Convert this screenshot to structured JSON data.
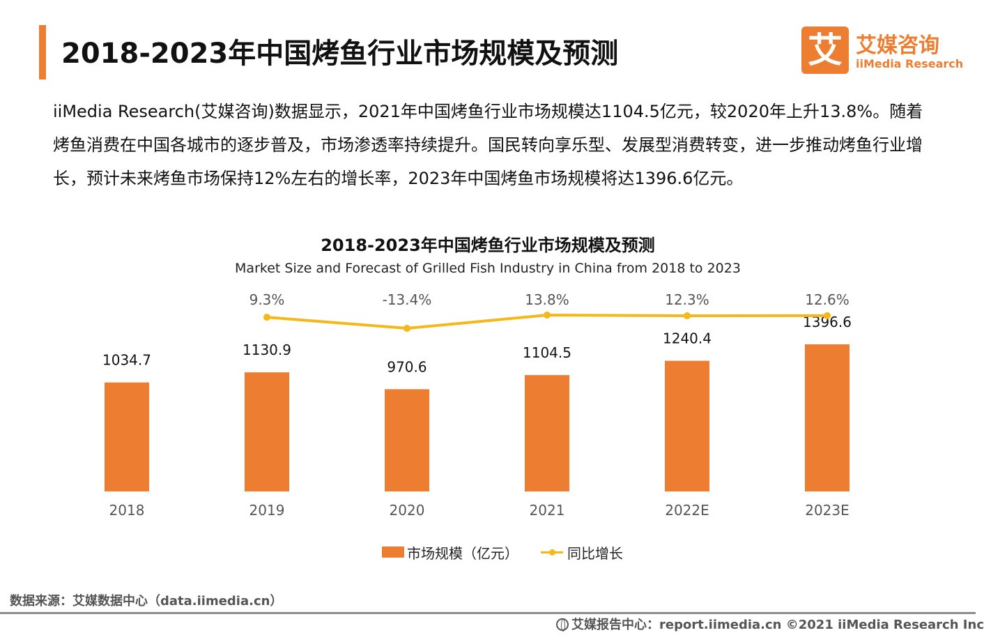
{
  "header": {
    "title": "2018-2023年中国烤鱼行业市场规模及预测"
  },
  "logo": {
    "mark": "艾",
    "name_cn": "艾媒咨询",
    "name_en": "iiMedia Research"
  },
  "intro": "iiMedia Research(艾媒咨询)数据显示，2021年中国烤鱼行业市场规模达1104.5亿元，较2020年上升13.8%。随着烤鱼消费在中国各城市的逐步普及，市场渗透率持续提升。国民转向享乐型、发展型消费转变，进一步推动烤鱼行业增长，预计未来烤鱼市场保持12%左右的增长率，2023年中国烤鱼市场规模将达1396.6亿元。",
  "chart_data": {
    "type": "bar",
    "title": "2018-2023年中国烤鱼行业市场规模及预测",
    "subtitle": "Market Size and Forecast of Grilled Fish Industry in China from 2018 to 2023",
    "categories": [
      "2018",
      "2019",
      "2020",
      "2021",
      "2022E",
      "2023E"
    ],
    "series": [
      {
        "name": "市场规模（亿元）",
        "type": "bar",
        "values": [
          1034.7,
          1130.9,
          970.6,
          1104.5,
          1240.4,
          1396.6
        ],
        "labels": [
          "1034.7",
          "1130.9",
          "970.6",
          "1104.5",
          "1240.4",
          "1396.6"
        ],
        "color": "#ed7d31"
      },
      {
        "name": "同比增长",
        "type": "line",
        "values": [
          9.3,
          -13.4,
          13.8,
          12.3,
          12.6
        ],
        "x": [
          "2019",
          "2020",
          "2021",
          "2022E",
          "2023E"
        ],
        "labels": [
          "9.3%",
          "-13.4%",
          "13.8%",
          "12.3%",
          "12.6%"
        ],
        "color": "#f4b81b"
      }
    ],
    "legend": "bottom",
    "grid": false
  },
  "source": "数据来源：艾媒数据中心（data.iimedia.cn）",
  "footer": "艾媒报告中心：report.iimedia.cn   ©2021  iiMedia Research  Inc"
}
